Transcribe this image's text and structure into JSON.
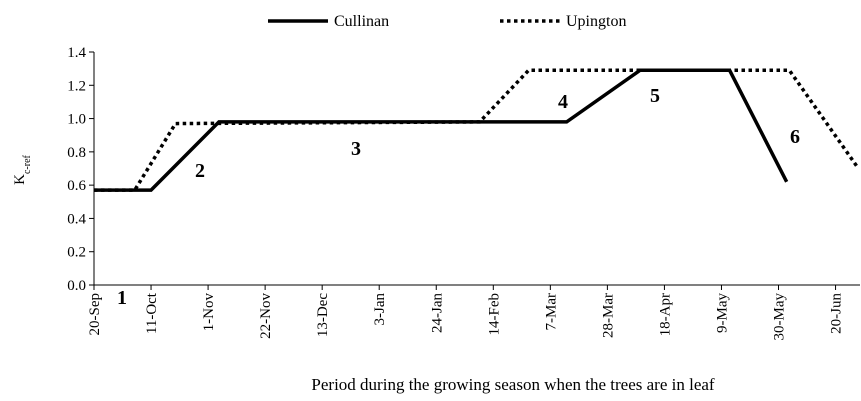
{
  "chart_data": {
    "type": "line",
    "x_label": "Period during the growing season when the trees are in leaf",
    "y_label": "K",
    "y_label_subscript": "c-ref",
    "xlim": [
      0,
      282
    ],
    "ylim": [
      0,
      1.4
    ],
    "xticks": [
      {
        "value": 0,
        "label": "20-Sep"
      },
      {
        "value": 21,
        "label": "11-Oct"
      },
      {
        "value": 42,
        "label": "1-Nov"
      },
      {
        "value": 63,
        "label": "22-Nov"
      },
      {
        "value": 84,
        "label": "13-Dec"
      },
      {
        "value": 105,
        "label": "3-Jan"
      },
      {
        "value": 126,
        "label": "24-Jan"
      },
      {
        "value": 147,
        "label": "14-Feb"
      },
      {
        "value": 168,
        "label": "7-Mar"
      },
      {
        "value": 189,
        "label": "28-Mar"
      },
      {
        "value": 210,
        "label": "18-Apr"
      },
      {
        "value": 231,
        "label": "9-May"
      },
      {
        "value": 252,
        "label": "30-May"
      },
      {
        "value": 273,
        "label": "20-Jun"
      }
    ],
    "yticks": [
      {
        "value": 0,
        "label": "0.0"
      },
      0.2,
      0.4,
      0.6,
      0.8,
      {
        "value": 1,
        "label": "1.0"
      },
      1.2,
      1.4
    ],
    "grid": false,
    "legend": "top",
    "series": [
      {
        "name": "Cullinan",
        "color": "#000000",
        "style": "solid",
        "x": [
          0,
          21,
          46,
          174,
          201,
          234,
          255
        ],
        "values": [
          0.57,
          0.57,
          0.98,
          0.98,
          1.29,
          1.29,
          0.62
        ]
      },
      {
        "name": "Upington",
        "color": "#000000",
        "style": "dotted",
        "x": [
          0,
          15,
          30,
          142,
          160,
          256,
          281
        ],
        "values": [
          0.57,
          0.57,
          0.97,
          0.98,
          1.29,
          1.29,
          0.71
        ]
      }
    ],
    "annotations": [
      "1",
      "2",
      "3",
      "4",
      "5",
      "6"
    ]
  }
}
